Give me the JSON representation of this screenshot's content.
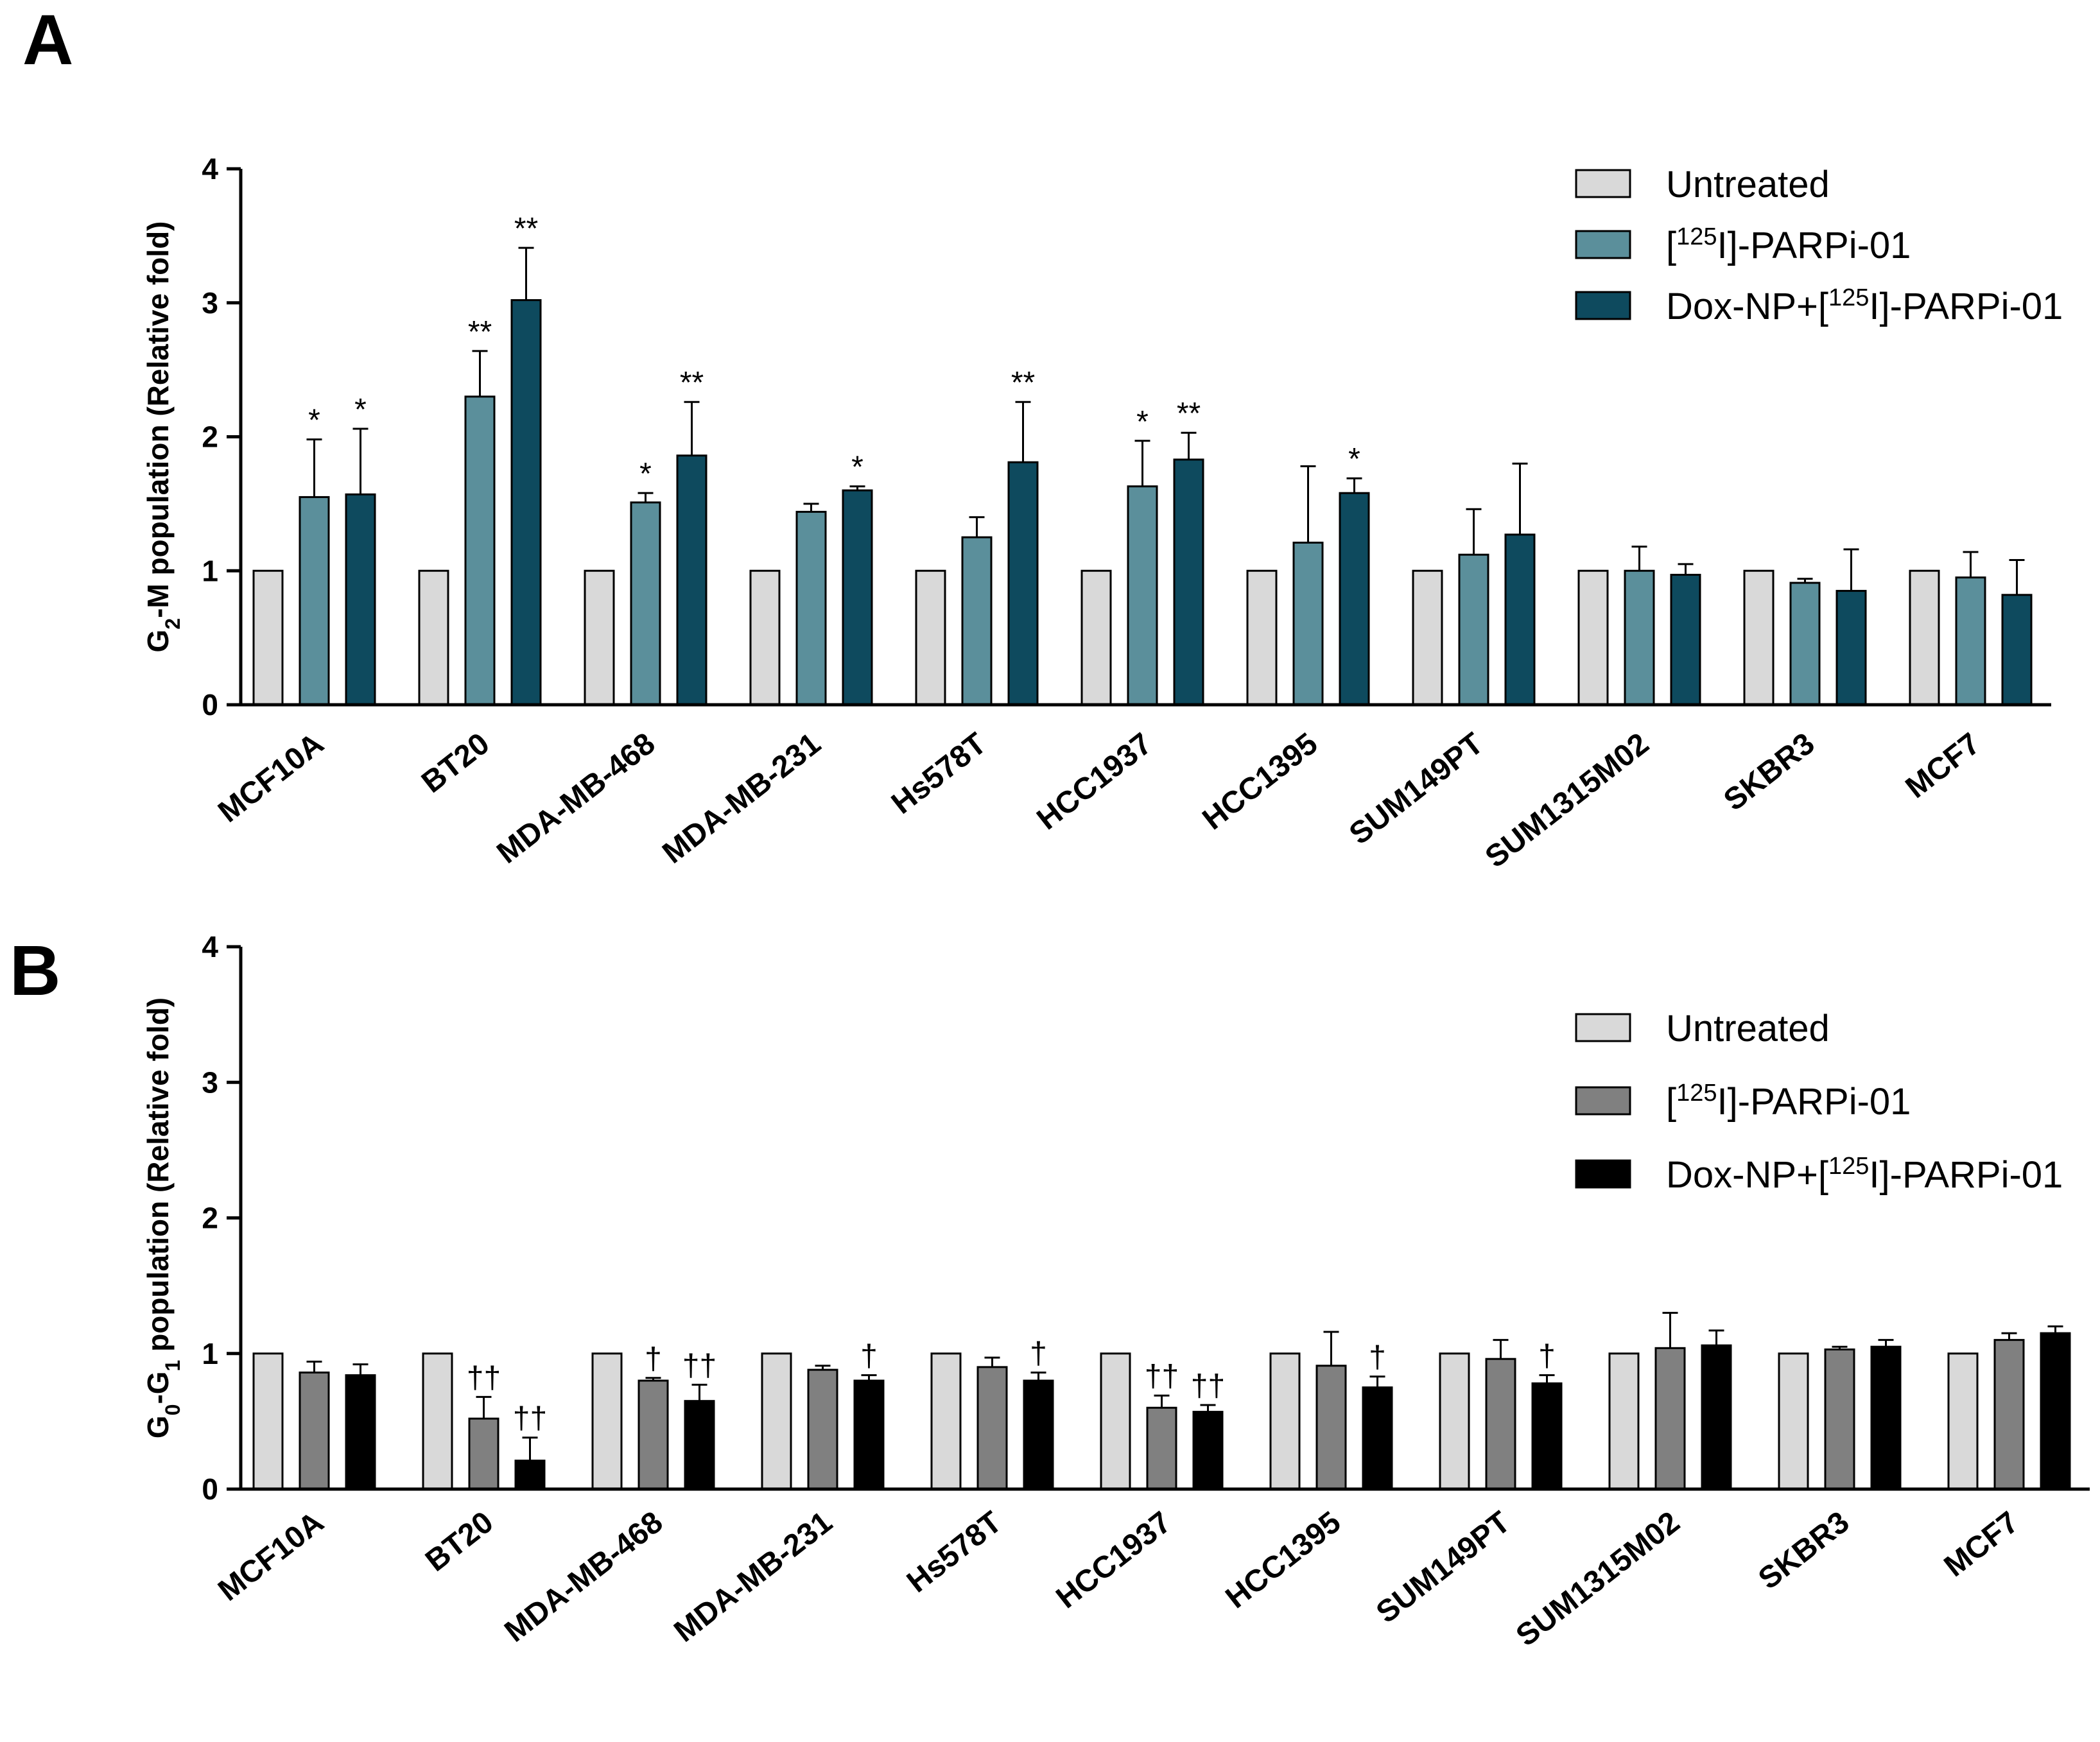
{
  "colors": {
    "untreated": "#d9d9d9",
    "panelA_parp": "#5b8f9b",
    "panelA_dox": "#0e4a5e",
    "panelB_parp": "#808080",
    "panelB_dox": "#000000"
  },
  "chart_data": [
    {
      "type": "bar",
      "panel_label": "A",
      "ylabel_main": "-M population (Relative fold)",
      "ylabel_prefix": "G",
      "ylabel_sub": "2",
      "ylim": [
        0,
        4
      ],
      "yticks": [
        "0",
        "1",
        "2",
        "3",
        "4"
      ],
      "legend_position": "top-right",
      "categories": [
        "MCF10A",
        "BT20",
        "MDA-MB-468",
        "MDA-MB-231",
        "Hs578T",
        "HCC1937",
        "HCC1395",
        "SUM149PT",
        "SUM1315M02",
        "SKBR3",
        "MCF7"
      ],
      "legend": [
        {
          "text": "Untreated",
          "color_key": "untreated"
        },
        {
          "pre": "[",
          "sup": "125",
          "post": "I]-PARPi-01",
          "color_key": "panelA_parp"
        },
        {
          "pre": "Dox-NP+[",
          "sup": "125",
          "post": "I]-PARPi-01",
          "color_key": "panelA_dox"
        }
      ],
      "series": [
        {
          "name": "Untreated",
          "color_key": "untreated",
          "values": [
            1,
            1,
            1,
            1,
            1,
            1,
            1,
            1,
            1,
            1,
            1
          ],
          "errors": [
            0,
            0,
            0,
            0,
            0,
            0,
            0,
            0,
            0,
            0,
            0
          ],
          "annotations": [
            "",
            "",
            "",
            "",
            "",
            "",
            "",
            "",
            "",
            "",
            ""
          ]
        },
        {
          "name": "[125I]-PARPi-01",
          "color_key": "panelA_parp",
          "values": [
            1.55,
            2.3,
            1.51,
            1.44,
            1.25,
            1.63,
            1.21,
            1.12,
            1.0,
            0.91,
            0.95
          ],
          "errors": [
            0.43,
            0.34,
            0.07,
            0.06,
            0.15,
            0.34,
            0.57,
            0.34,
            0.18,
            0.03,
            0.19
          ],
          "annotations": [
            "*",
            "**",
            "*",
            "",
            "",
            "*",
            "",
            "",
            "",
            "",
            ""
          ]
        },
        {
          "name": "Dox-NP+[125I]-PARPi-01",
          "color_key": "panelA_dox",
          "values": [
            1.57,
            3.02,
            1.86,
            1.6,
            1.81,
            1.83,
            1.58,
            1.27,
            0.97,
            0.85,
            0.82
          ],
          "errors": [
            0.49,
            0.39,
            0.4,
            0.03,
            0.45,
            0.2,
            0.11,
            0.53,
            0.08,
            0.31,
            0.26
          ],
          "annotations": [
            "*",
            "**",
            "**",
            "*",
            "**",
            "**",
            "*",
            "",
            "",
            "",
            ""
          ]
        }
      ]
    },
    {
      "type": "bar",
      "panel_label": "B",
      "ylabel_main": " population (Relative fold)",
      "ylabel_prefix": "G",
      "ylabel_sub": "0",
      "ylabel_mid": "-G",
      "ylabel_sub2": "1",
      "ylim": [
        0,
        4
      ],
      "yticks": [
        "0",
        "1",
        "2",
        "3",
        "4"
      ],
      "legend_position": "top-right",
      "categories": [
        "MCF10A",
        "BT20",
        "MDA-MB-468",
        "MDA-MB-231",
        "Hs578T",
        "HCC1937",
        "HCC1395",
        "SUM149PT",
        "SUM1315M02",
        "SKBR3",
        "MCF7"
      ],
      "legend": [
        {
          "text": "Untreated",
          "color_key": "untreated"
        },
        {
          "pre": "[",
          "sup": "125",
          "post": "I]-PARPi-01",
          "color_key": "panelB_parp"
        },
        {
          "pre": "Dox-NP+[",
          "sup": "125",
          "post": "I]-PARPi-01",
          "color_key": "panelB_dox"
        }
      ],
      "series": [
        {
          "name": "Untreated",
          "color_key": "untreated",
          "values": [
            1,
            1,
            1,
            1,
            1,
            1,
            1,
            1,
            1,
            1,
            1
          ],
          "errors": [
            0,
            0,
            0,
            0,
            0,
            0,
            0,
            0,
            0,
            0,
            0
          ],
          "annotations": [
            "",
            "",
            "",
            "",
            "",
            "",
            "",
            "",
            "",
            "",
            ""
          ]
        },
        {
          "name": "[125I]-PARPi-01",
          "color_key": "panelB_parp",
          "values": [
            0.86,
            0.52,
            0.8,
            0.88,
            0.9,
            0.6,
            0.91,
            0.96,
            1.04,
            1.03,
            1.1
          ],
          "errors": [
            0.08,
            0.16,
            0.02,
            0.03,
            0.07,
            0.09,
            0.25,
            0.14,
            0.26,
            0.02,
            0.05
          ],
          "annotations": [
            "",
            "††",
            "†",
            "",
            "",
            "††",
            "",
            "",
            "",
            "",
            ""
          ]
        },
        {
          "name": "Dox-NP+[125I]-PARPi-01",
          "color_key": "panelB_dox",
          "values": [
            0.84,
            0.21,
            0.65,
            0.8,
            0.8,
            0.57,
            0.75,
            0.78,
            1.06,
            1.05,
            1.15
          ],
          "errors": [
            0.08,
            0.17,
            0.12,
            0.04,
            0.06,
            0.05,
            0.08,
            0.06,
            0.11,
            0.05,
            0.05
          ],
          "annotations": [
            "",
            "††",
            "††",
            "†",
            "†",
            "††",
            "†",
            "†",
            "",
            "",
            ""
          ]
        }
      ]
    }
  ]
}
